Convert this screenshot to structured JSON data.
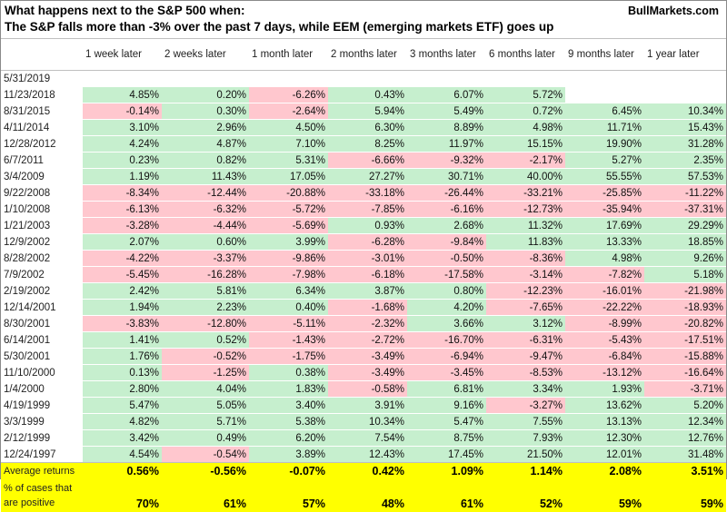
{
  "header": {
    "title_line1": "What happens next to the S&P 500 when:",
    "title_line2": "The S&P falls more than -3% over the past 7 days, while EEM (emerging markets ETF) goes up",
    "brand": "BullMarkets.com"
  },
  "table": {
    "columns": [
      "1 week later",
      "2 weeks later",
      "1 month later",
      "2 months later",
      "3 months later",
      "6 months later",
      "9 months later",
      "1 year later"
    ],
    "rows": [
      {
        "date": "5/31/2019",
        "values": [
          "",
          "",
          "",
          "",
          "",
          "",
          "",
          ""
        ]
      },
      {
        "date": "11/23/2018",
        "values": [
          "4.85%",
          "0.20%",
          "-6.26%",
          "0.43%",
          "6.07%",
          "5.72%",
          "",
          ""
        ]
      },
      {
        "date": "8/31/2015",
        "values": [
          "-0.14%",
          "0.30%",
          "-2.64%",
          "5.94%",
          "5.49%",
          "0.72%",
          "6.45%",
          "10.34%"
        ]
      },
      {
        "date": "4/11/2014",
        "values": [
          "3.10%",
          "2.96%",
          "4.50%",
          "6.30%",
          "8.89%",
          "4.98%",
          "11.71%",
          "15.43%"
        ]
      },
      {
        "date": "12/28/2012",
        "values": [
          "4.24%",
          "4.87%",
          "7.10%",
          "8.25%",
          "11.97%",
          "15.15%",
          "19.90%",
          "31.28%"
        ]
      },
      {
        "date": "6/7/2011",
        "values": [
          "0.23%",
          "0.82%",
          "5.31%",
          "-6.66%",
          "-9.32%",
          "-2.17%",
          "5.27%",
          "2.35%"
        ]
      },
      {
        "date": "3/4/2009",
        "values": [
          "1.19%",
          "11.43%",
          "17.05%",
          "27.27%",
          "30.71%",
          "40.00%",
          "55.55%",
          "57.53%"
        ]
      },
      {
        "date": "9/22/2008",
        "values": [
          "-8.34%",
          "-12.44%",
          "-20.88%",
          "-33.18%",
          "-26.44%",
          "-33.21%",
          "-25.85%",
          "-11.22%"
        ]
      },
      {
        "date": "1/10/2008",
        "values": [
          "-6.13%",
          "-6.32%",
          "-5.72%",
          "-7.85%",
          "-6.16%",
          "-12.73%",
          "-35.94%",
          "-37.31%"
        ]
      },
      {
        "date": "1/21/2003",
        "values": [
          "-3.28%",
          "-4.44%",
          "-5.69%",
          "0.93%",
          "2.68%",
          "11.32%",
          "17.69%",
          "29.29%"
        ]
      },
      {
        "date": "12/9/2002",
        "values": [
          "2.07%",
          "0.60%",
          "3.99%",
          "-6.28%",
          "-9.84%",
          "11.83%",
          "13.33%",
          "18.85%"
        ]
      },
      {
        "date": "8/28/2002",
        "values": [
          "-4.22%",
          "-3.37%",
          "-9.86%",
          "-3.01%",
          "-0.50%",
          "-8.36%",
          "4.98%",
          "9.26%"
        ]
      },
      {
        "date": "7/9/2002",
        "values": [
          "-5.45%",
          "-16.28%",
          "-7.98%",
          "-6.18%",
          "-17.58%",
          "-3.14%",
          "-7.82%",
          "5.18%"
        ]
      },
      {
        "date": "2/19/2002",
        "values": [
          "2.42%",
          "5.81%",
          "6.34%",
          "3.87%",
          "0.80%",
          "-12.23%",
          "-16.01%",
          "-21.98%"
        ]
      },
      {
        "date": "12/14/2001",
        "values": [
          "1.94%",
          "2.23%",
          "0.40%",
          "-1.68%",
          "4.20%",
          "-7.65%",
          "-22.22%",
          "-18.93%"
        ]
      },
      {
        "date": "8/30/2001",
        "values": [
          "-3.83%",
          "-12.80%",
          "-5.11%",
          "-2.32%",
          "3.66%",
          "3.12%",
          "-8.99%",
          "-20.82%"
        ]
      },
      {
        "date": "6/14/2001",
        "values": [
          "1.41%",
          "0.52%",
          "-1.43%",
          "-2.72%",
          "-16.70%",
          "-6.31%",
          "-5.43%",
          "-17.51%"
        ]
      },
      {
        "date": "5/30/2001",
        "values": [
          "1.76%",
          "-0.52%",
          "-1.75%",
          "-3.49%",
          "-6.94%",
          "-9.47%",
          "-6.84%",
          "-15.88%"
        ]
      },
      {
        "date": "11/10/2000",
        "values": [
          "0.13%",
          "-1.25%",
          "0.38%",
          "-3.49%",
          "-3.45%",
          "-8.53%",
          "-13.12%",
          "-16.64%"
        ]
      },
      {
        "date": "1/4/2000",
        "values": [
          "2.80%",
          "4.04%",
          "1.83%",
          "-0.58%",
          "6.81%",
          "3.34%",
          "1.93%",
          "-3.71%"
        ]
      },
      {
        "date": "4/19/1999",
        "values": [
          "5.47%",
          "5.05%",
          "3.40%",
          "3.91%",
          "9.16%",
          "-3.27%",
          "13.62%",
          "5.20%"
        ]
      },
      {
        "date": "3/3/1999",
        "values": [
          "4.82%",
          "5.71%",
          "5.38%",
          "10.34%",
          "5.47%",
          "7.55%",
          "13.13%",
          "12.34%"
        ]
      },
      {
        "date": "2/12/1999",
        "values": [
          "3.42%",
          "0.49%",
          "6.20%",
          "7.54%",
          "8.75%",
          "7.93%",
          "12.30%",
          "12.76%"
        ]
      },
      {
        "date": "12/24/1997",
        "values": [
          "4.54%",
          "-0.54%",
          "3.89%",
          "12.43%",
          "17.45%",
          "21.50%",
          "12.01%",
          "31.48%"
        ]
      }
    ],
    "average_label": "Average returns",
    "average_values": [
      "0.56%",
      "-0.56%",
      "-0.07%",
      "0.42%",
      "1.09%",
      "1.14%",
      "2.08%",
      "3.51%"
    ],
    "positive_label_line1": "% of cases that",
    "positive_label_line2": "are positive",
    "positive_values": [
      "70%",
      "61%",
      "57%",
      "48%",
      "61%",
      "52%",
      "59%",
      "59%"
    ]
  },
  "colors": {
    "positive_fill": "#c6efce",
    "negative_fill": "#ffc7ce",
    "summary_fill": "#ffff00"
  }
}
